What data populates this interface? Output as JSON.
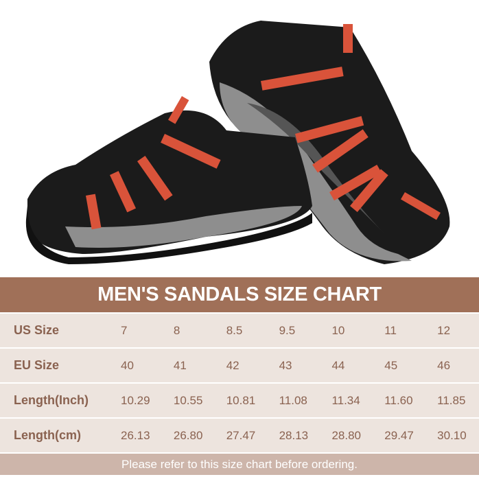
{
  "chart_title": "MEN'S SANDALS SIZE CHART",
  "rows": [
    {
      "label": "US Size",
      "values": [
        "7",
        "8",
        "8.5",
        "9.5",
        "10",
        "11",
        "12"
      ]
    },
    {
      "label": "EU Size",
      "values": [
        "40",
        "41",
        "42",
        "43",
        "44",
        "45",
        "46"
      ]
    },
    {
      "label": "Length(Inch)",
      "values": [
        "10.29",
        "10.55",
        "10.81",
        "11.08",
        "11.34",
        "11.60",
        "11.85"
      ]
    },
    {
      "label": "Length(cm)",
      "values": [
        "26.13",
        "26.80",
        "27.47",
        "28.13",
        "28.80",
        "29.47",
        "30.10"
      ]
    }
  ],
  "footer_note": "Please refer to this size chart before ordering.",
  "colors": {
    "header": "#a07058",
    "row": "#ede4de",
    "footer": "#cdb5aa",
    "text": "#8a6250",
    "strap": "#d9533a"
  }
}
